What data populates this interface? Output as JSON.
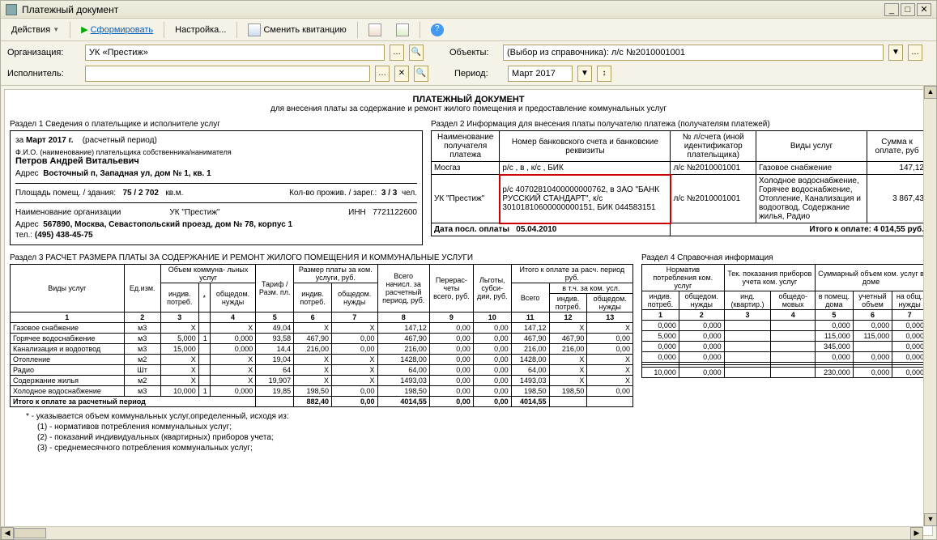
{
  "window": {
    "title": "Платежный документ"
  },
  "toolbar": {
    "actions": "Действия",
    "form": "Сформировать",
    "settings": "Настройка...",
    "change": "Сменить квитанцию"
  },
  "filters": {
    "org_label": "Организация:",
    "org_value": "УК «Престиж»",
    "exec_label": "Исполнитель:",
    "exec_value": "",
    "obj_label": "Объекты:",
    "obj_value": "(Выбор из справочника): л/с №2010001001",
    "period_label": "Период:",
    "period_value": "Март 2017"
  },
  "doc": {
    "title": "ПЛАТЕЖНЫЙ ДОКУМЕНТ",
    "subtitle": "для внесения платы за содержание и ремонт жилого помещения и предоставление коммунальных услуг"
  },
  "sec1": {
    "head": "Раздел 1   Сведения о плательщике и исполнителе услуг",
    "period_prefix": "за",
    "period": "Март 2017 г.",
    "period_note": "(расчетный период)",
    "fio_lbl": "Ф.И.О. (наименование) плательщика собственника/нанимателя",
    "name": "Петров Андрей Витальевич",
    "addr_lbl": "Адрес",
    "addr": "Восточный п, Западная ул, дом № 1, кв. 1",
    "area_lbl": "Площадь помещ. / здания:",
    "area": "75 / 2 702",
    "area_unit": "кв.м.",
    "people_lbl": "Кол-во прожив. / зарег.:",
    "people": "3 / 3",
    "people_unit": "чел.",
    "orgname_lbl": "Наименование организации",
    "orgname": "УК \"Престиж\"",
    "inn_lbl": "ИНН",
    "inn": "7721122600",
    "orgaddr_lbl": "Адрес",
    "orgaddr": "567890, Москва, Севастопольский проезд, дом № 78, корпус 1",
    "tel_lbl": "тел.:",
    "tel": "(495) 438-45-75"
  },
  "sec2": {
    "head": "Раздел 2   Информация для внесения платы получателю платежа (получателям платежей)",
    "h1": "Наименование получателя платежа",
    "h2": "Номер банковского счета и банковские реквизиты",
    "h3": "№ л/счета (иной идентификатор плательщика)",
    "h4": "Виды услуг",
    "h5": "Сумма к оплате, руб",
    "rows": [
      {
        "rec": "Мосгаз",
        "bank": "р/с , в , к/с , БИК",
        "acc": "л/с №2010001001",
        "svc": "Газовое снабжение",
        "sum": "147,12"
      },
      {
        "rec": "УК \"Престиж\"",
        "bank": "р/с 40702810400000000762, в ЗАО \"БАНК РУССКИЙ СТАНДАРТ\", к/с 30101810600000000151, БИК 044583151",
        "acc": "л/с №2010001001",
        "svc": "Холодное водоснабжение, Горячее водоснабжение, Отопление, Канализация и водоотвод, Содержание жилья, Радио",
        "sum": "3 867,43"
      }
    ],
    "paydate_lbl": "Дата посл. оплаты",
    "paydate": "05.04.2010",
    "total_lbl": "Итого к оплате:",
    "total": "4 014,55 руб."
  },
  "sec3": {
    "head": "Раздел 3   РАСЧЕТ РАЗМЕРА ПЛАТЫ ЗА СОДЕРЖАНИЕ И РЕМОНТ ЖИЛОГО ПОМЕЩЕНИЯ И КОММУНАЛЬНЫЕ УСЛУГИ",
    "h": [
      "Виды услуг",
      "Ед.изм.",
      "Объем коммуна-\nльных услуг",
      "Тариф / Разм. пл.",
      "Размер платы за ком. услуги, руб.",
      "Всего начисл. за расчетный период, руб.",
      "Перерас-\nчеты всего, руб.",
      "Льготы, субси-\nдии, руб.",
      "Итого к оплате за расч. период руб."
    ],
    "sub_vol": [
      "индив. потреб.",
      "*",
      "общедом. нужды"
    ],
    "sub_pay": [
      "индив. потреб.",
      "общедом. нужды"
    ],
    "sub_tot": [
      "Всего",
      "в т.ч. за ком. усл."
    ],
    "sub_tot2": [
      "индив. потреб.",
      "общедом. нужды"
    ],
    "num": [
      "1",
      "2",
      "3",
      "4",
      "5",
      "6",
      "7",
      "8",
      "9",
      "10",
      "11",
      "12",
      "13"
    ],
    "rows": [
      [
        "Газовое снабжение",
        "м3",
        "X",
        "",
        "X",
        "49,04",
        "X",
        "X",
        "147,12",
        "0,00",
        "0,00",
        "147,12",
        "X",
        "X"
      ],
      [
        "Горячее водоснабжение",
        "м3",
        "5,000",
        "1",
        "0,000",
        "93,58",
        "467,90",
        "0,00",
        "467,90",
        "0,00",
        "0,00",
        "467,90",
        "467,90",
        "0,00"
      ],
      [
        "Канализация и водоотвод",
        "м3",
        "15,000",
        "",
        "0,000",
        "14,4",
        "216,00",
        "0,00",
        "216,00",
        "0,00",
        "0,00",
        "216,00",
        "216,00",
        "0,00"
      ],
      [
        "Отопление",
        "м2",
        "X",
        "",
        "X",
        "19,04",
        "X",
        "X",
        "1428,00",
        "0,00",
        "0,00",
        "1428,00",
        "X",
        "X"
      ],
      [
        "Радио",
        "Шт",
        "X",
        "",
        "X",
        "64",
        "X",
        "X",
        "64,00",
        "0,00",
        "0,00",
        "64,00",
        "X",
        "X"
      ],
      [
        "Содержание жилья",
        "м2",
        "X",
        "",
        "X",
        "19,907",
        "X",
        "X",
        "1493,03",
        "0,00",
        "0,00",
        "1493,03",
        "X",
        "X"
      ],
      [
        "Холодное водоснабжение",
        "м3",
        "10,000",
        "1",
        "0,000",
        "19,85",
        "198,50",
        "0,00",
        "198,50",
        "0,00",
        "0,00",
        "198,50",
        "198,50",
        "0,00"
      ]
    ],
    "total_row": [
      "Итого к оплате за расчетный период",
      "",
      "",
      "",
      "",
      "",
      "882,40",
      "0,00",
      "4014,55",
      "0,00",
      "0,00",
      "4014,55",
      "",
      ""
    ]
  },
  "sec4": {
    "head": "Раздел 4   Справочная информация",
    "h": [
      "Норматив потребления ком. услуг",
      "Тек. показания приборов учета ком. услуг",
      "Суммарный объем ком. услуг в доме"
    ],
    "sub1": [
      "индив. потреб.",
      "общедом. нужды"
    ],
    "sub2": [
      "инд. (квартир.)",
      "общедо-\nмовых"
    ],
    "sub3": [
      "в помещ. дома",
      "учетный объем",
      "на общ. нужды"
    ],
    "num": [
      "1",
      "2",
      "3",
      "4",
      "5",
      "6",
      "7"
    ],
    "rows": [
      [
        "0,000",
        "0,000",
        "",
        "",
        "0,000",
        "0,000",
        "0,000"
      ],
      [
        "5,000",
        "0,000",
        "",
        "",
        "115,000",
        "115,000",
        "0,000"
      ],
      [
        "0,000",
        "0,000",
        "",
        "",
        "345,000",
        "",
        "0,000"
      ],
      [
        "0,000",
        "0,000",
        "",
        "",
        "0,000",
        "0,000",
        "0,000"
      ],
      [
        "",
        "",
        "",
        "",
        "",
        "",
        ""
      ],
      [
        "",
        "",
        "",
        "",
        "",
        "",
        ""
      ],
      [
        "10,000",
        "0,000",
        "",
        "",
        "230,000",
        "0,000",
        "0,000"
      ]
    ]
  },
  "foot": {
    "star": "* - указывается объем коммунальных услуг,определенный, исходя из:",
    "n1": "(1) - нормативов потребления коммунальных услуг;",
    "n2": "(2) - показаний индивидуальных (квартирных) приборов учета;",
    "n3": "(3) - среднемесячного потребления коммунальных услуг;"
  }
}
